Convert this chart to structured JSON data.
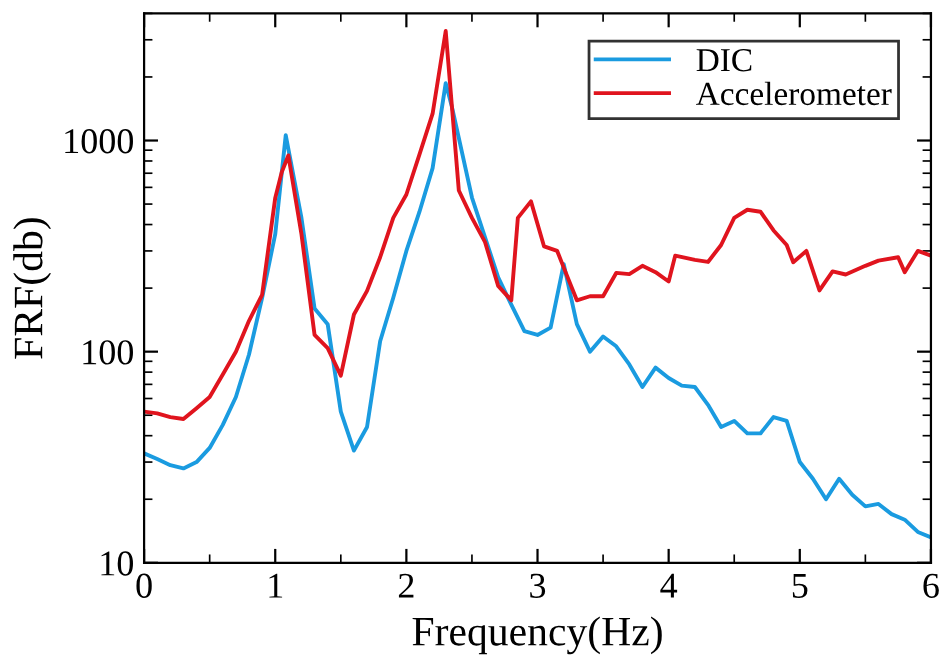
{
  "chart_data": {
    "type": "line",
    "xlabel": "Frequency(Hz)",
    "ylabel": "FRF(db)",
    "log": "y",
    "xlim": [
      0,
      6
    ],
    "xticks": [
      0,
      1,
      2,
      3,
      4,
      5,
      6
    ],
    "ylim": [
      10,
      4000
    ],
    "yticks": [
      10,
      100,
      1000
    ],
    "grid": false,
    "legend": "top right",
    "line_style": "solid",
    "marker": "none",
    "series": [
      {
        "name": "DIC",
        "color": "#1a9be0",
        "x": [
          0,
          0.1,
          0.2,
          0.3,
          0.4,
          0.5,
          0.6,
          0.7,
          0.8,
          0.9,
          1.0,
          1.08,
          1.2,
          1.3,
          1.4,
          1.5,
          1.6,
          1.7,
          1.8,
          1.9,
          2.0,
          2.1,
          2.2,
          2.3,
          2.35,
          2.5,
          2.7,
          2.8,
          2.9,
          3.0,
          3.1,
          3.2,
          3.3,
          3.4,
          3.5,
          3.6,
          3.7,
          3.8,
          3.9,
          4.0,
          4.1,
          4.2,
          4.3,
          4.4,
          4.5,
          4.6,
          4.7,
          4.8,
          4.9,
          5.0,
          5.1,
          5.2,
          5.3,
          5.4,
          5.5,
          5.6,
          5.7,
          5.8,
          5.9,
          6.0
        ],
        "values": [
          33,
          31,
          29,
          28,
          30,
          35,
          45,
          61,
          97,
          180,
          360,
          1060,
          430,
          160,
          135,
          52,
          34,
          44,
          112,
          180,
          300,
          460,
          740,
          1870,
          1420,
          537,
          225,
          167,
          125,
          120,
          130,
          260,
          135,
          100,
          118,
          106,
          87,
          68,
          84,
          75,
          69,
          68,
          56,
          44,
          47,
          41,
          41,
          49,
          47,
          30,
          25,
          20,
          25,
          21,
          18.5,
          19,
          17,
          16,
          14,
          13.2
        ]
      },
      {
        "name": "Accelerometer",
        "color": "#e0141e",
        "x": [
          0,
          0.1,
          0.2,
          0.3,
          0.4,
          0.5,
          0.6,
          0.7,
          0.8,
          0.9,
          1.0,
          1.05,
          1.1,
          1.2,
          1.3,
          1.4,
          1.5,
          1.6,
          1.7,
          1.8,
          1.9,
          2.0,
          2.1,
          2.2,
          2.3,
          2.4,
          2.5,
          2.6,
          2.7,
          2.8,
          2.85,
          2.95,
          3.05,
          3.15,
          3.2,
          3.3,
          3.4,
          3.5,
          3.6,
          3.7,
          3.8,
          3.9,
          4.0,
          4.05,
          4.2,
          4.3,
          4.4,
          4.5,
          4.6,
          4.7,
          4.8,
          4.9,
          4.95,
          5.05,
          5.15,
          5.25,
          5.35,
          5.5,
          5.6,
          5.75,
          5.8,
          5.9,
          6.0
        ],
        "values": [
          52,
          51,
          49,
          48,
          54,
          61,
          78,
          100,
          140,
          186,
          535,
          710,
          850,
          360,
          120,
          104,
          77,
          150,
          194,
          280,
          430,
          555,
          860,
          1340,
          3300,
          580,
          430,
          330,
          205,
          175,
          430,
          515,
          315,
          300,
          250,
          175,
          183,
          183,
          236,
          233,
          255,
          238,
          215,
          285,
          272,
          266,
          320,
          430,
          470,
          460,
          375,
          320,
          265,
          300,
          195,
          240,
          232,
          255,
          270,
          280,
          238,
          300,
          285
        ]
      }
    ]
  }
}
